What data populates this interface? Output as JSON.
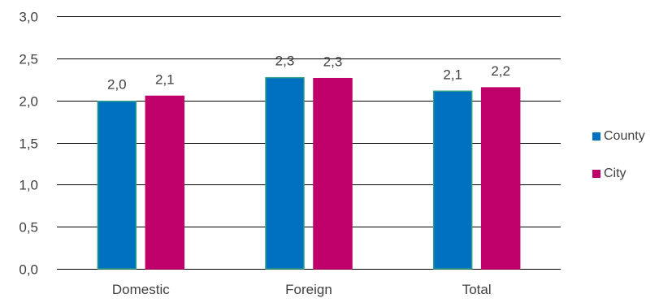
{
  "chart_data": {
    "type": "bar",
    "categories": [
      "Domestic",
      "Foreign",
      "Total"
    ],
    "series": [
      {
        "name": "County",
        "values": [
          2.0,
          2.3,
          2.1
        ],
        "bar_heights": [
          1.99,
          2.27,
          2.11
        ],
        "color": "#0070C0",
        "edge": "#2E9E88"
      },
      {
        "name": "City",
        "values": [
          2.1,
          2.3,
          2.2
        ],
        "bar_heights": [
          2.05,
          2.26,
          2.15
        ],
        "color": "#C0006A",
        "edge": "#C0006A"
      }
    ],
    "title": "",
    "xlabel": "",
    "ylabel": "",
    "ylim": [
      0,
      3.0
    ],
    "yticks": [
      "0,0",
      "0,5",
      "1,0",
      "1,5",
      "2,0",
      "2,5",
      "3,0"
    ],
    "data_labels": [
      [
        "2,0",
        "2,3",
        "2,1"
      ],
      [
        "2,1",
        "2,3",
        "2,2"
      ]
    ],
    "grid": true,
    "legend_position": "right"
  }
}
